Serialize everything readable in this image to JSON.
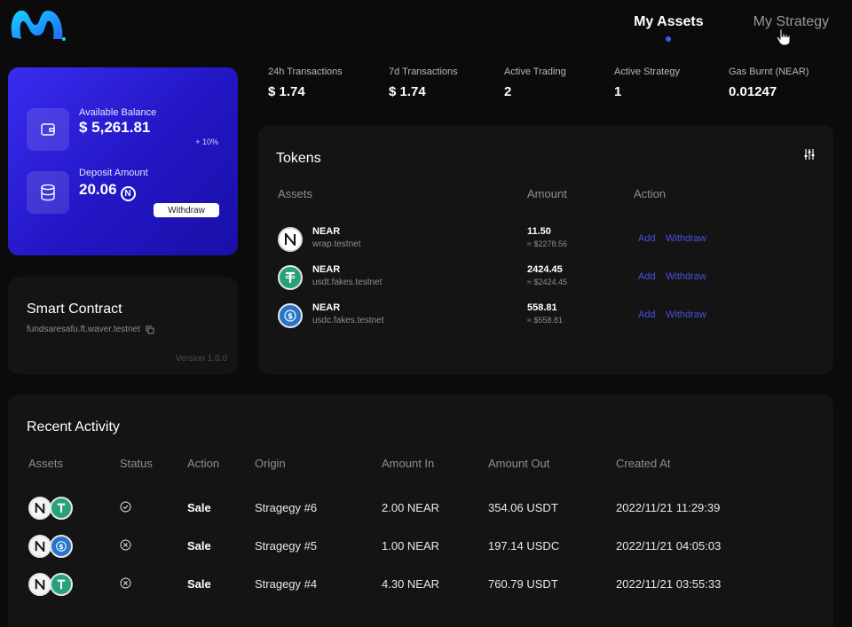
{
  "nav": {
    "tabs": [
      {
        "label": "My Assets"
      },
      {
        "label": "My Strategy"
      }
    ]
  },
  "balance": {
    "available_label": "Available Balance",
    "available_value": "$ 5,261.81",
    "change": "+ 10%",
    "deposit_label": "Deposit Amount",
    "deposit_value": "20.06",
    "withdraw_label": "Withdraw"
  },
  "contract": {
    "title": "Smart Contract",
    "address": "fundsaresafu.ft.waver.testnet",
    "version": "Version 1.0.0"
  },
  "stats": [
    {
      "label": "24h Transactions",
      "value": "$ 1.74"
    },
    {
      "label": "7d Transactions",
      "value": "$ 1.74"
    },
    {
      "label": "Active Trading",
      "value": "2"
    },
    {
      "label": "Active Strategy",
      "value": "1"
    },
    {
      "label": "Gas Burnt (NEAR)",
      "value": "0.01247"
    }
  ],
  "tokens": {
    "title": "Tokens",
    "headers": {
      "assets": "Assets",
      "amount": "Amount",
      "action": "Action"
    },
    "rows": [
      {
        "name": "NEAR",
        "contract": "wrap.testnet",
        "amount": "11.50",
        "usd": "≈ $2278.56",
        "add": "Add",
        "withdraw": "Withdraw",
        "icon": "near"
      },
      {
        "name": "NEAR",
        "contract": "usdt.fakes.testnet",
        "amount": "2424.45",
        "usd": "≈ $2424.45",
        "add": "Add",
        "withdraw": "Withdraw",
        "icon": "usdt"
      },
      {
        "name": "NEAR",
        "contract": "usdc.fakes.testnet",
        "amount": "558.81",
        "usd": "≈ $558.81",
        "add": "Add",
        "withdraw": "Withdraw",
        "icon": "usdc"
      }
    ]
  },
  "activity": {
    "title": "Recent Activity",
    "headers": {
      "assets": "Assets",
      "status": "Status",
      "action": "Action",
      "origin": "Origin",
      "amount_in": "Amount In",
      "amount_out": "Amount Out",
      "created_at": "Created At"
    },
    "rows": [
      {
        "status": "success",
        "action": "Sale",
        "origin": "Stragegy #6",
        "amount_in": "2.00 NEAR",
        "amount_out": "354.06 USDT",
        "created_at": "2022/11/21 11:29:39",
        "pair": [
          "near",
          "usdt"
        ]
      },
      {
        "status": "failed",
        "action": "Sale",
        "origin": "Stragegy #5",
        "amount_in": "1.00 NEAR",
        "amount_out": "197.14 USDC",
        "created_at": "2022/11/21 04:05:03",
        "pair": [
          "near",
          "usdc"
        ]
      },
      {
        "status": "failed",
        "action": "Sale",
        "origin": "Stragegy #4",
        "amount_in": "4.30 NEAR",
        "amount_out": "760.79 USDT",
        "created_at": "2022/11/21 03:55:33",
        "pair": [
          "near",
          "usdt"
        ]
      }
    ]
  },
  "colors": {
    "accent": "#3b5bff",
    "link": "#4a52e0",
    "card": "#141415",
    "background": "#0b0b0c",
    "usdt": "#26a17b",
    "usdc": "#2775ca"
  }
}
